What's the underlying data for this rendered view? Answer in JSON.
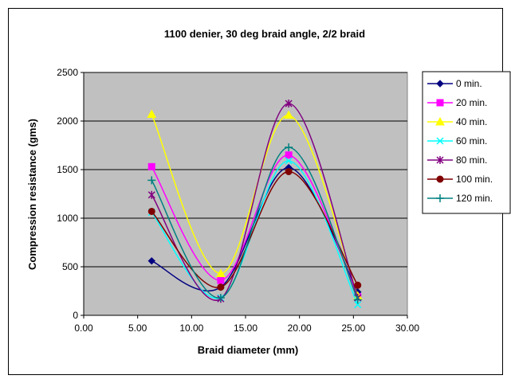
{
  "chart_data": {
    "type": "line",
    "title": "1100 denier, 30 deg braid angle, 2/2 braid",
    "xlabel": "Braid diameter (mm)",
    "ylabel": "Compression resistance (gms)",
    "xlim": [
      0,
      30
    ],
    "ylim": [
      0,
      2500
    ],
    "x_ticks": [
      "0.00",
      "5.00",
      "10.00",
      "15.00",
      "20.00",
      "25.00",
      "30.00"
    ],
    "y_ticks": [
      "0",
      "500",
      "1000",
      "1500",
      "2000",
      "2500"
    ],
    "x": [
      6.3,
      12.7,
      19.0,
      25.4
    ],
    "grid": "horizontal",
    "plot_background": "#c0c0c0",
    "smoothed": true,
    "legend_position": "right",
    "series": [
      {
        "name": "0 min.",
        "values": [
          560,
          290,
          1520,
          240
        ],
        "color": "#000080",
        "marker": "diamond"
      },
      {
        "name": "20 min.",
        "values": [
          1530,
          360,
          1650,
          190
        ],
        "color": "#ff00ff",
        "marker": "square"
      },
      {
        "name": "40 min.",
        "values": [
          2070,
          430,
          2060,
          200
        ],
        "color": "#ffff00",
        "marker": "triangle"
      },
      {
        "name": "60 min.",
        "values": [
          1060,
          180,
          1590,
          110
        ],
        "color": "#00ffff",
        "marker": "x"
      },
      {
        "name": "80 min.",
        "values": [
          1240,
          170,
          2180,
          180
        ],
        "color": "#800080",
        "marker": "star"
      },
      {
        "name": "100 min.",
        "values": [
          1070,
          290,
          1480,
          310
        ],
        "color": "#800000",
        "marker": "circle"
      },
      {
        "name": "120 min.",
        "values": [
          1390,
          180,
          1730,
          160
        ],
        "color": "#008080",
        "marker": "plus"
      }
    ]
  }
}
